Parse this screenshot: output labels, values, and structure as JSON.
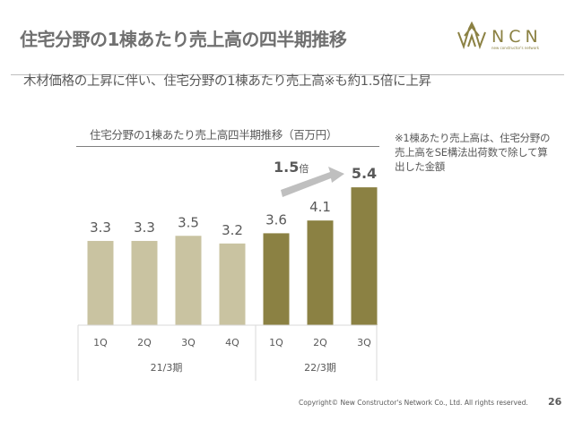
{
  "header": {
    "title": "住宅分野の1棟あたり売上高の四半期推移",
    "subtitle": "木材価格の上昇に伴い、住宅分野の1棟あたり売上高※も約1.5倍に上昇",
    "logo": {
      "text": "NCN",
      "tagline": "new constructor's network"
    }
  },
  "note": "※1棟あたり売上高は、住宅分野の売上高をSE構法出荷数で除して算出した金額",
  "colors": {
    "fy21": "#c9c3a1",
    "fy22": "#8b8143",
    "arrow": "#bfbfbf",
    "logo": "#8b8143"
  },
  "chart_data": {
    "type": "bar",
    "title": "住宅分野の1棟あたり売上高四半期推移（百万円）",
    "categories": [
      "1Q",
      "2Q",
      "3Q",
      "4Q",
      "1Q",
      "2Q",
      "3Q"
    ],
    "groups": [
      {
        "label": "21/3期",
        "count": 4
      },
      {
        "label": "22/3期",
        "count": 3
      }
    ],
    "values": [
      3.3,
      3.3,
      3.5,
      3.2,
      3.6,
      4.1,
      5.4
    ],
    "data_labels": [
      "3.3",
      "3.3",
      "3.5",
      "3.2",
      "3.6",
      "4.1",
      "5.4"
    ],
    "ylim": [
      0,
      6
    ],
    "grid": false,
    "annotation": {
      "value": "1.5",
      "unit": "倍"
    }
  },
  "footer": {
    "copyright": "Copyright© New Constructor's Network Co., Ltd. All rights reserved.",
    "page": "26"
  }
}
